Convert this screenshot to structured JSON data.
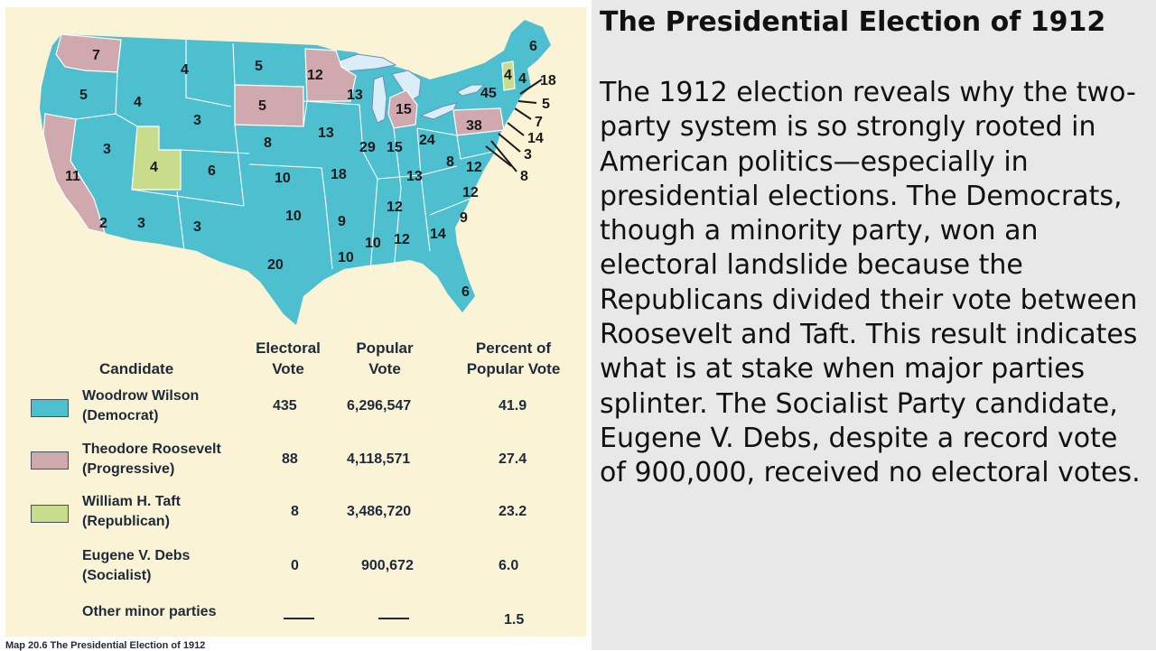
{
  "map": {
    "labels": {
      "wa": "7",
      "or": "5",
      "ca": "11",
      "id": "4",
      "nv": "3",
      "ut": "4",
      "az": "3",
      "mt": "4",
      "wy": "3",
      "co": "6",
      "nm": "3",
      "nd": "5",
      "sd": "5",
      "ne": "8",
      "ks": "10",
      "ok": "10",
      "tx": "20",
      "mn": "12",
      "ia": "13",
      "mo": "18",
      "ar": "9",
      "la": "10",
      "wi": "13",
      "il": "29",
      "mi": "15",
      "in": "15",
      "oh": "24",
      "ky": "13",
      "tn": "12",
      "ms": "10",
      "al": "12",
      "ga": "14",
      "fl": "6",
      "sc": "9",
      "nc": "12",
      "va": "12",
      "wv": "8",
      "pa": "38",
      "ny": "45",
      "me": "6",
      "vt": "4",
      "nh": "4",
      "ma": "18",
      "ri": "5",
      "ct": "7",
      "nj": "14",
      "de": "3",
      "md": "8",
      "dc": "2"
    }
  },
  "table": {
    "headers": {
      "candidate": "Candidate",
      "electoral_l1": "Electoral",
      "electoral_l2": "Vote",
      "popular_l1": "Popular",
      "popular_l2": "Vote",
      "percent_l1": "Percent of",
      "percent_l2": "Popular Vote"
    },
    "rows": [
      {
        "name": "Woodrow Wilson",
        "party": "(Democrat)",
        "electoral": "435",
        "popular": "6,296,547",
        "percent": "41.9",
        "color": "#4dbfcf"
      },
      {
        "name": "Theodore Roosevelt",
        "party": "(Progressive)",
        "electoral": "88",
        "popular": "4,118,571",
        "percent": "27.4",
        "color": "#cfa9ad"
      },
      {
        "name": "William H. Taft",
        "party": "(Republican)",
        "electoral": "8",
        "popular": "3,486,720",
        "percent": "23.2",
        "color": "#c8dc8c"
      },
      {
        "name": "Eugene V. Debs",
        "party": "(Socialist)",
        "electoral": "0",
        "popular": "900,672",
        "percent": "6.0"
      },
      {
        "name": "Other minor parties",
        "percent": "1.5"
      }
    ]
  },
  "caption": "Map 20.6 The Presidential Election of 1912",
  "text_panel": {
    "title": "The Presidential Election of 1912",
    "body": "The 1912 election reveals why the two-party system is so strongly rooted in American politics—especially in presidential elections. The Democrats, though a minority party, won an electoral landslide because the Republicans divided their vote between Roosevelt and Taft. This result indicates what is at stake when major parties splinter. The Socialist Party candidate, Eugene V. Debs, despite a record vote of 900,000, received no electoral votes."
  },
  "colors": {
    "wilson": "#4dbfcf",
    "roosevelt": "#cfa9ad",
    "taft": "#c8dc8c",
    "map_background": "#fbf3d6",
    "text_panel_background": "#e8e8e8"
  }
}
